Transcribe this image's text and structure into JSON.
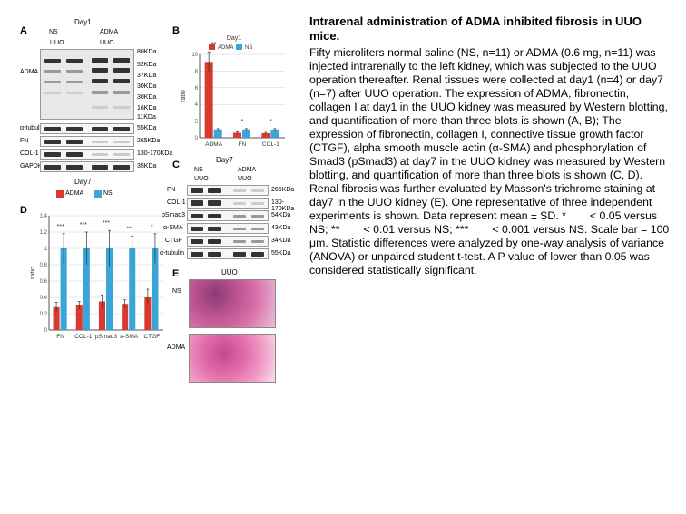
{
  "text": {
    "title": "Intrarenal administration of ADMA inhibited fibrosis in UUO mice.",
    "caption": "Fifty microliters normal saline (NS, n=11) or ADMA (0.6 mg, n=11) was injected intrarenally to the left kidney, which was subjected to the UUO operation thereafter. Renal tissues were collected at day1 (n=4) or day7 (n=7) after UUO operation. The expression of ADMA, fibronectin, collagen I at day1 in the UUO kidney was measured by Western blotting, and quantification of more than three blots is shown (A, B); The expression of fibronectin, collagen I, connective tissue growth factor (CTGF), alpha smooth muscle actin (α-SMA) and phosphorylation of Smad3 (pSmad3) at day7 in the UUO kidney was measured by Western blotting, and quantification of more than three blots is shown (C, D). Renal fibrosis was further evaluated by Masson's trichrome staining at day7 in the UUO kidney (E). One representative of three independent experiments is shown. Data represent mean ± SD. *ﾠﾠ < 0.05 versus NS; **ﾠﾠ < 0.01 versus NS; ***ﾠﾠ < 0.001 versus NS. Scale bar = 100 μm. Statistic differences were analyzed by one-way analysis of variance (ANOVA) or unpaired student t-test. A P value of lower than 0.05 was considered statistically significant."
  },
  "panelLabels": {
    "A": "A",
    "B": "B",
    "C": "C",
    "D": "D",
    "E": "E"
  },
  "labels": {
    "day1": "Day1",
    "day7": "Day7",
    "NS": "NS",
    "ADMA": "ADMA",
    "UUO": "UUO",
    "atub_a": "α-tubulin",
    "FN": "FN",
    "COL1": "COL-1",
    "GAPDH": "GAPDH",
    "pSmad3": "pSmad3",
    "aSMA": "α-SMA",
    "CTGF": "CTGF",
    "atub_c": "α-tubulin",
    "ratio": "ratio"
  },
  "mw": {
    "a_80": "80KDa",
    "a_52": "52KDa",
    "a_37": "37KDa",
    "a_30a": "30KDa",
    "a_30b": "30KDa",
    "a_16": "16KDa",
    "a_11": "11KDa",
    "a_tub": "55KDa",
    "a_fn": "265KDa",
    "a_col": "130-170KDa",
    "a_gapdh": "35KDa",
    "c_fn": "265KDa",
    "c_col": "130-170KDa",
    "c_psmad": "54KDa",
    "c_asma": "43KDa",
    "c_ctgf": "34KDa",
    "c_tub": "55KDa"
  },
  "colors": {
    "adma": "#d83a2f",
    "ns": "#3aa6d8",
    "grid": "#d0d0d0",
    "axis": "#555"
  },
  "chartB": {
    "type": "bar",
    "yMax": 10,
    "yTicks": [
      0,
      2,
      4,
      6,
      8,
      10
    ],
    "ylabel": "ratio",
    "categories": [
      "ADMA",
      "FN",
      "COL-1"
    ],
    "series": [
      {
        "name": "ADMA",
        "color": "#d83a2f",
        "values": [
          9.1,
          0.6,
          0.55
        ],
        "err": [
          1.2,
          0.12,
          0.1
        ]
      },
      {
        "name": "NS",
        "color": "#3aa6d8",
        "values": [
          1.0,
          1.0,
          1.0
        ],
        "err": [
          0.1,
          0.1,
          0.1
        ]
      }
    ],
    "sig": [
      "**",
      "*",
      "*"
    ]
  },
  "chartD": {
    "type": "bar",
    "yMax": 1.4,
    "yTicks": [
      0,
      0.2,
      0.4,
      0.6,
      0.8,
      1.0,
      1.2,
      1.4
    ],
    "ylabel": "ratio",
    "categories": [
      "FN",
      "COL-1",
      "pSmad3",
      "a-SMA",
      "CTGF"
    ],
    "series": [
      {
        "name": "ADMA",
        "color": "#d83a2f",
        "values": [
          0.28,
          0.3,
          0.35,
          0.32,
          0.4
        ],
        "err": [
          0.06,
          0.05,
          0.08,
          0.05,
          0.1
        ]
      },
      {
        "name": "NS",
        "color": "#3aa6d8",
        "values": [
          1.0,
          1.0,
          1.0,
          1.0,
          1.0
        ],
        "err": [
          0.18,
          0.2,
          0.22,
          0.15,
          0.18
        ]
      }
    ],
    "sig": [
      "***",
      "***",
      "***",
      "**",
      "*"
    ]
  },
  "histology": {
    "NS": {
      "label": "NS",
      "fill": "#b8528f"
    },
    "ADMA": {
      "label": "ADMA",
      "fill": "#e06aa8"
    }
  }
}
